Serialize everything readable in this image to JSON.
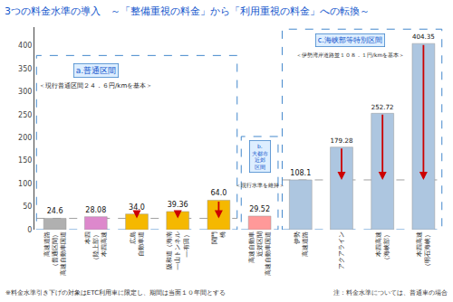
{
  "chart_data": {
    "type": "bar",
    "title": "3つの料金水準の導入　～「整備重視の料金」から「利用重視の料金」への転換～",
    "categories": [
      "高速道路\n（普通区間）\n高速自動車国道",
      "本四\n（陸上部）\n本四高速",
      "広島\n自動車道",
      "阪和道（海南\n―山トンネル\n―有田）",
      "関門\n橋",
      "高速自動車\n近郊区間\n高速自動車国道",
      "伊勢\n高速道路",
      "アクアライン",
      "本四高速\n（海峡部）",
      "本四高速\n（明石海峡）"
    ],
    "values": [
      24.6,
      28.08,
      34.0,
      39.36,
      64.0,
      29.52,
      108.1,
      179.28,
      252.72,
      404.35
    ],
    "value_labels": [
      "24.6",
      "28.08",
      "34.0",
      "39.36",
      "64.0",
      "29.52",
      "108.1",
      "179.28",
      "252.72",
      "404.35"
    ],
    "data_labels": true,
    "colors": [
      "#b0b0b0",
      "#dd88cc",
      "#f5b800",
      "#f5b800",
      "#f5b800",
      "#ff9999",
      "#adc6e0",
      "#adc6e0",
      "#adc6e0",
      "#adc6e0"
    ],
    "ylim": [
      0,
      440
    ],
    "yticks": [
      0,
      50,
      100,
      150,
      200,
      250,
      300,
      350,
      400
    ],
    "grid": false,
    "sections": [
      "a",
      "a",
      "a",
      "a",
      "a",
      "b",
      "c",
      "c",
      "c",
      "c"
    ],
    "section_labels": {
      "a": {
        "label": "a.普通区間",
        "note": "＜現行普通区間２４．６円/kmを基本＞"
      },
      "b": {
        "label": "b.\n大都市\n近郊\n区間",
        "note": "＜現行水準を維持＞"
      },
      "c": {
        "label": "c.海峡部等特別区間",
        "note": "＜伊勢湾岸道路並１０８．１円/kmを基本＞"
      }
    },
    "ref_lines": {
      "a": 24.6,
      "c": 108.1
    },
    "arrows": [
      false,
      false,
      true,
      true,
      true,
      false,
      false,
      true,
      true,
      true
    ],
    "arrow_color": "#cc0000",
    "footnotes": [
      "※料金水準引き下げの対象はETC利用車に限定し、期間は当面１０年間とする",
      "注：料金水準については、普通車の場合"
    ]
  }
}
